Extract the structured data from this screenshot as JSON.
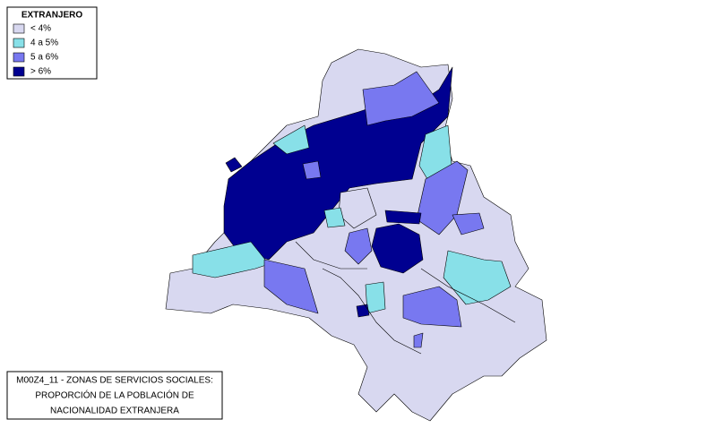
{
  "legend": {
    "title": "EXTRANJERO",
    "items": [
      {
        "label": "< 4%",
        "color": "#d8d8f0"
      },
      {
        "label": "4 a 5%",
        "color": "#88e0e8"
      },
      {
        "label": "5 a 6%",
        "color": "#7878f0"
      },
      {
        "label": "> 6%",
        "color": "#000090"
      }
    ]
  },
  "caption": {
    "lines": [
      "M00Z4_11 - ZONAS DE SERVICIOS SOCIALES:",
      "PROPORCIÓN DE LA POBLACIÓN DE",
      "NACIONALIDAD EXTRANJERA"
    ]
  }
}
